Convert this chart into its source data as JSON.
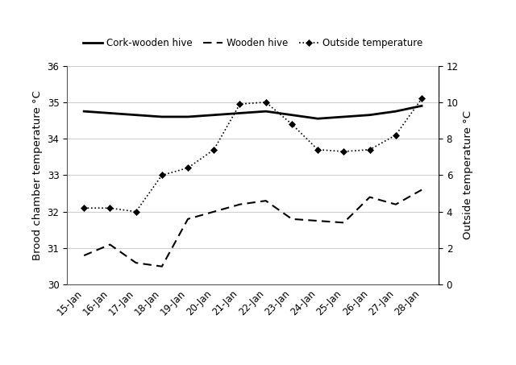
{
  "dates": [
    "15-Jan",
    "16-Jan",
    "17-Jan",
    "18-Jan",
    "19-Jan",
    "20-Jan",
    "21-Jan",
    "22-Jan",
    "23-Jan",
    "24-Jan",
    "25-Jan",
    "26-Jan",
    "27-Jan",
    "28-Jan"
  ],
  "cork_wooden": [
    34.75,
    34.7,
    34.65,
    34.6,
    34.6,
    34.65,
    34.7,
    34.75,
    34.65,
    34.55,
    34.6,
    34.65,
    34.75,
    34.9
  ],
  "wooden": [
    30.8,
    31.1,
    30.6,
    30.5,
    31.8,
    32.0,
    32.2,
    32.3,
    31.8,
    31.75,
    31.7,
    32.4,
    32.2,
    32.6
  ],
  "outside_right": [
    4.2,
    4.2,
    4.0,
    6.0,
    6.4,
    7.4,
    9.9,
    10.0,
    8.8,
    7.4,
    7.3,
    7.4,
    8.2,
    10.2
  ],
  "left_ylim": [
    30,
    36
  ],
  "right_ylim": [
    0,
    12
  ],
  "left_yticks": [
    30,
    31,
    32,
    33,
    34,
    35,
    36
  ],
  "right_yticks": [
    0,
    2,
    4,
    6,
    8,
    10,
    12
  ],
  "ylabel_left": "Brood chamber temperature °C",
  "ylabel_right": "Outside temperature °C",
  "legend_labels": [
    "Cork-wooden hive",
    "Wooden hive",
    "Outside temperature"
  ],
  "bg_color": "#ffffff",
  "grid_color": "#d0d0d0",
  "tick_fontsize": 8.5,
  "label_fontsize": 9.5,
  "legend_fontsize": 8.5
}
